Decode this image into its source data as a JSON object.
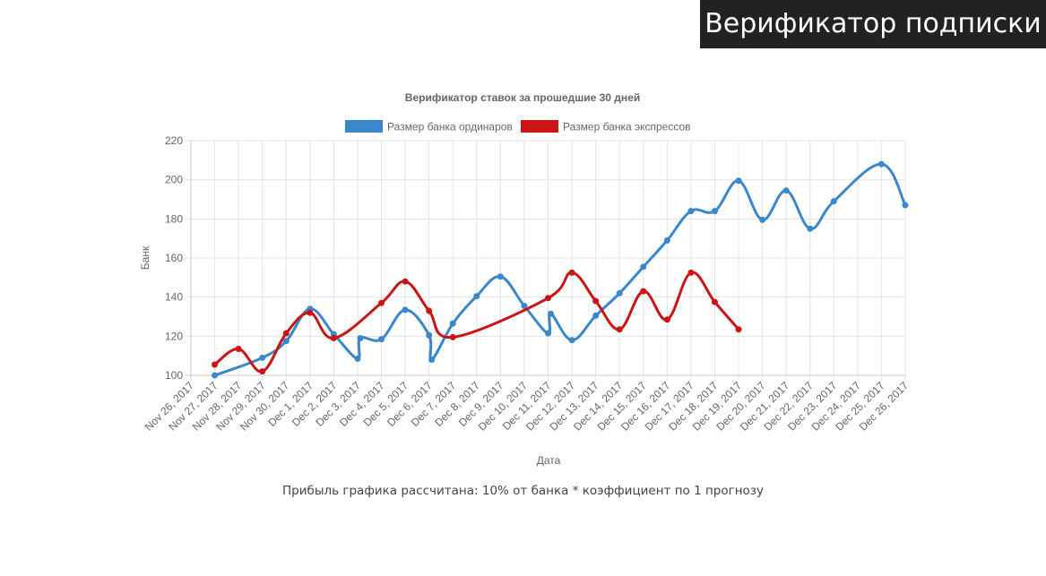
{
  "header": {
    "title": "Верификатор подписки",
    "background": "#222222"
  },
  "footnote": "Прибыль графика рассчитана: 10% от банка * коэффициент по 1 прогнозу",
  "chart_data": {
    "type": "line",
    "title": "Верификатор ставок за прошедшие 30 дней",
    "xlabel": "Дата",
    "ylabel": "Банк",
    "ylim": [
      100,
      220
    ],
    "yticks": [
      100,
      120,
      140,
      160,
      180,
      200,
      220
    ],
    "grid": true,
    "legend_position": "top-center",
    "categories": [
      "Nov 26, 2017",
      "Nov 27, 2017",
      "Nov 28, 2017",
      "Nov 29, 2017",
      "Nov 30, 2017",
      "Dec 1, 2017",
      "Dec 2, 2017",
      "Dec 3, 2017",
      "Dec 4, 2017",
      "Dec 5, 2017",
      "Dec 6, 2017",
      "Dec 7, 2017",
      "Dec 8, 2017",
      "Dec 9, 2017",
      "Dec 10, 2017",
      "Dec 11, 2017",
      "Dec 12, 2017",
      "Dec 13, 2017",
      "Dec 14, 2017",
      "Dec 15, 2017",
      "Dec 16, 2017",
      "Dec 17, 2017",
      "Dec 18, 2017",
      "Dec 19, 2017",
      "Dec 20, 2017",
      "Dec 21, 2017",
      "Dec 22, 2017",
      "Dec 23, 2017",
      "Dec 24, 2017",
      "Dec 25, 2017",
      "Dec 26, 2017"
    ],
    "series": [
      {
        "name": "Размер банка ординаров",
        "color": "#3a87cc",
        "points": [
          {
            "x": "Nov 27, 2017",
            "y": 100
          },
          {
            "x": "Nov 29, 2017",
            "y": 109
          },
          {
            "x": "Nov 30, 2017",
            "y": 117.5
          },
          {
            "x": "Dec 1, 2017",
            "y": 134
          },
          {
            "x": "Dec 2, 2017",
            "y": 121
          },
          {
            "x": "Dec 3, 2017",
            "y": 108.5
          },
          {
            "x": "Dec 3, 2017",
            "y": 119
          },
          {
            "x": "Dec 4, 2017",
            "y": 118.5
          },
          {
            "x": "Dec 5, 2017",
            "y": 133.5
          },
          {
            "x": "Dec 6, 2017",
            "y": 120.5
          },
          {
            "x": "Dec 6, 2017",
            "y": 108
          },
          {
            "x": "Dec 7, 2017",
            "y": 126.5
          },
          {
            "x": "Dec 8, 2017",
            "y": 140.5
          },
          {
            "x": "Dec 9, 2017",
            "y": 150.5
          },
          {
            "x": "Dec 10, 2017",
            "y": 135.5
          },
          {
            "x": "Dec 11, 2017",
            "y": 121.5
          },
          {
            "x": "Dec 11, 2017",
            "y": 131.5
          },
          {
            "x": "Dec 12, 2017",
            "y": 118
          },
          {
            "x": "Dec 13, 2017",
            "y": 130.5
          },
          {
            "x": "Dec 14, 2017",
            "y": 142
          },
          {
            "x": "Dec 15, 2017",
            "y": 155.5
          },
          {
            "x": "Dec 16, 2017",
            "y": 169
          },
          {
            "x": "Dec 17, 2017",
            "y": 184
          },
          {
            "x": "Dec 18, 2017",
            "y": 184
          },
          {
            "x": "Dec 19, 2017",
            "y": 199.5
          },
          {
            "x": "Dec 20, 2017",
            "y": 179.5
          },
          {
            "x": "Dec 21, 2017",
            "y": 194.5
          },
          {
            "x": "Dec 22, 2017",
            "y": 175
          },
          {
            "x": "Dec 23, 2017",
            "y": 189
          },
          {
            "x": "Dec 25, 2017",
            "y": 208
          },
          {
            "x": "Dec 26, 2017",
            "y": 187
          }
        ]
      },
      {
        "name": "Размер банка экспрессов",
        "color": "#cc1414",
        "points": [
          {
            "x": "Nov 27, 2017",
            "y": 105.5
          },
          {
            "x": "Nov 28, 2017",
            "y": 113.5
          },
          {
            "x": "Nov 29, 2017",
            "y": 102
          },
          {
            "x": "Nov 30, 2017",
            "y": 121.5
          },
          {
            "x": "Dec 1, 2017",
            "y": 132
          },
          {
            "x": "Dec 2, 2017",
            "y": 119
          },
          {
            "x": "Dec 4, 2017",
            "y": 137
          },
          {
            "x": "Dec 5, 2017",
            "y": 148
          },
          {
            "x": "Dec 6, 2017",
            "y": 133
          },
          {
            "x": "Dec 7, 2017",
            "y": 119.5
          },
          {
            "x": "Dec 11, 2017",
            "y": 139.5
          },
          {
            "x": "Dec 12, 2017",
            "y": 152.5
          },
          {
            "x": "Dec 13, 2017",
            "y": 138
          },
          {
            "x": "Dec 14, 2017",
            "y": 123.5
          },
          {
            "x": "Dec 15, 2017",
            "y": 143
          },
          {
            "x": "Dec 16, 2017",
            "y": 128.5
          },
          {
            "x": "Dec 17, 2017",
            "y": 152.5
          },
          {
            "x": "Dec 18, 2017",
            "y": 137.5
          },
          {
            "x": "Dec 19, 2017",
            "y": 123.5
          }
        ]
      }
    ]
  }
}
